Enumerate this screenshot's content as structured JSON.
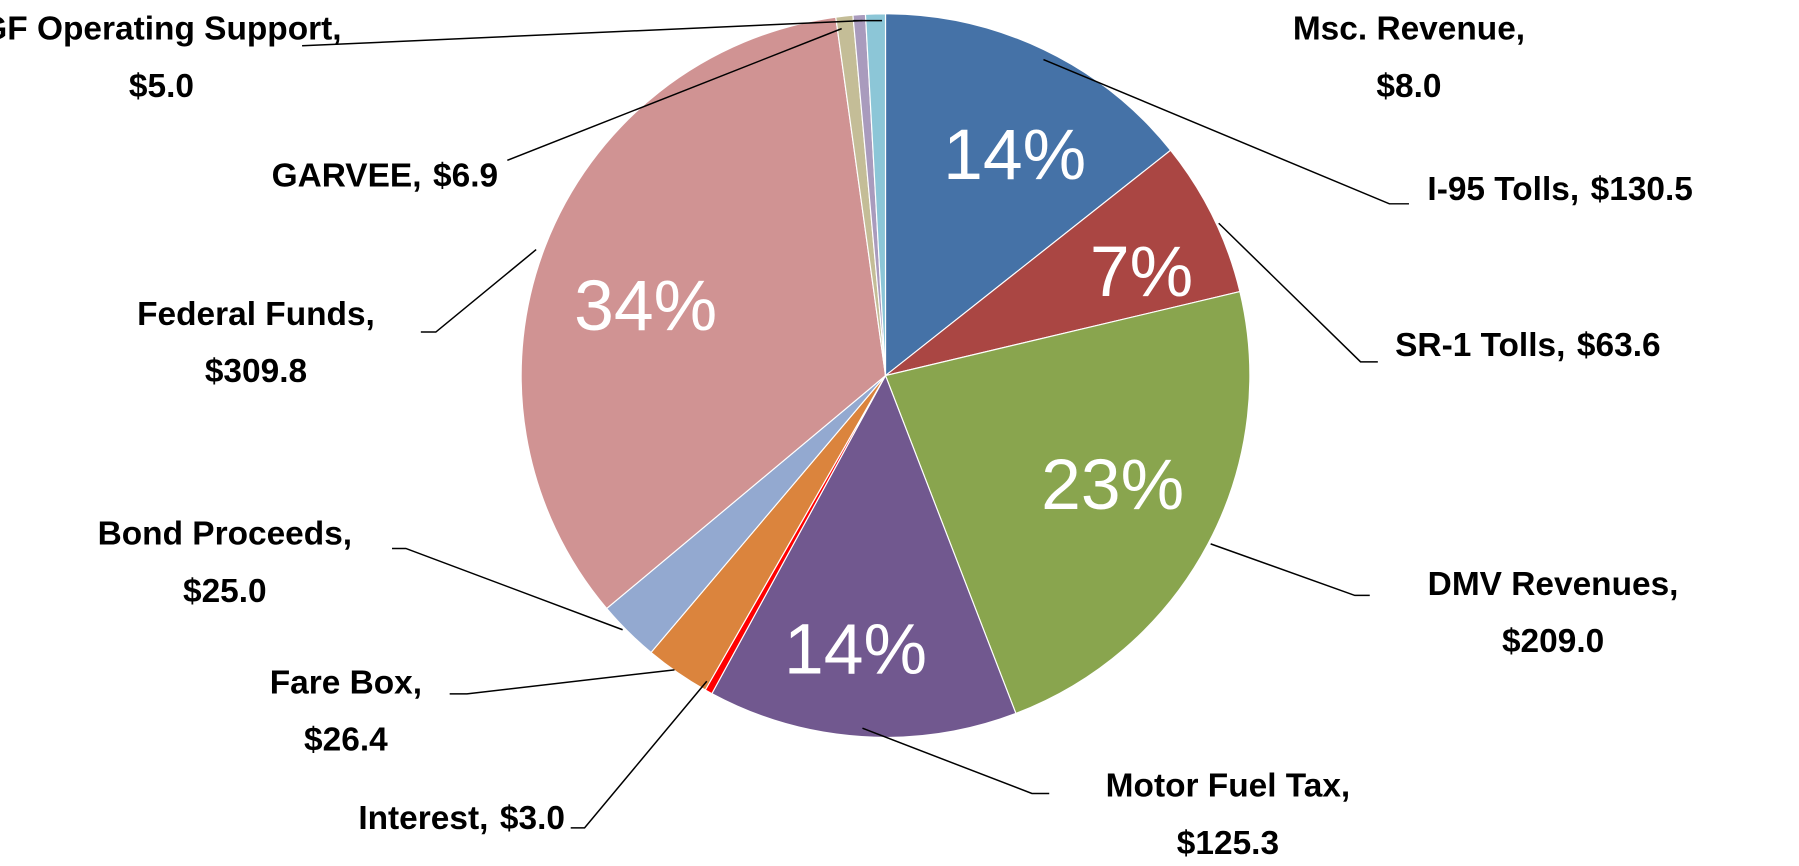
{
  "chart_data": {
    "type": "pie",
    "categories": [
      "I-95 Tolls,",
      "SR-1 Tolls,",
      "DMV Revenues,",
      "Motor Fuel Tax,",
      "Interest,",
      "Fare Box,",
      "Bond Proceeds,",
      "Federal Funds,",
      "GARVEE,",
      "GF Operating Support,",
      "Msc. Revenue,"
    ],
    "values": [
      130.5,
      63.6,
      209.0,
      125.3,
      3.0,
      26.4,
      25.0,
      309.8,
      6.9,
      5.0,
      8.0
    ],
    "value_labels": [
      "$130.5",
      "$63.6",
      "$209.0",
      "$125.3",
      "$3.0",
      "$26.4",
      "$25.0",
      "$309.8",
      "$6.9",
      "$5.0",
      "$8.0"
    ],
    "percent_labels": [
      "14%",
      "7%",
      "23%",
      "14%",
      null,
      null,
      null,
      "34%",
      null,
      null,
      null
    ],
    "colors": [
      "#4572a7",
      "#aa4643",
      "#89a54e",
      "#71588f",
      "#ff0000",
      "#db843d",
      "#93a9d0",
      "#d09393",
      "#c4bd97",
      "#a99bbd",
      "#8cc6d7"
    ]
  }
}
